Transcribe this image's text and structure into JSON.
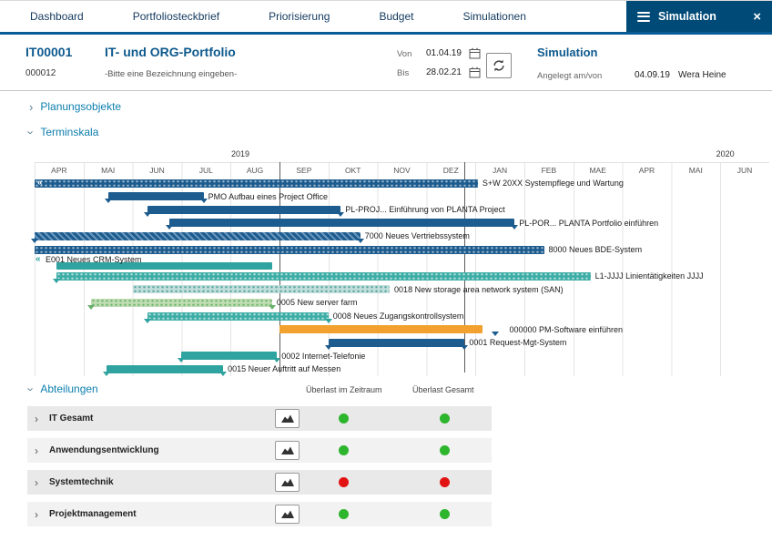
{
  "colors": {
    "accent_blue": "#0e5a8e",
    "tab_active_bg": "#004a78",
    "section_blue": "#0e7fae",
    "green": "#2db52d",
    "red": "#e31212",
    "dark_bar": "#1d5c8f",
    "teal_bar": "#2fa3a0",
    "orange_bar": "#f2a12e"
  },
  "tabs": {
    "items": [
      {
        "label": "Dashboard"
      },
      {
        "label": "Portfoliosteckbrief"
      },
      {
        "label": "Priorisierung"
      },
      {
        "label": "Budget"
      },
      {
        "label": "Simulationen"
      },
      {
        "label": "Simulation",
        "active": true
      }
    ]
  },
  "header": {
    "id": "IT00001",
    "id2": "000012",
    "title": "IT- und ORG-Portfolio",
    "subtitle": "-Bitte eine Bezeichnung eingeben-",
    "von_label": "Von",
    "von_value": "01.04.19",
    "bis_label": "Bis",
    "bis_value": "28.02.21",
    "sim_title": "Simulation",
    "created_label": "Angelegt am/von",
    "created_date": "04.09.19",
    "created_by": "Wera Heine"
  },
  "sections": {
    "planungsobjekte": "Planungsobjekte",
    "terminskala": "Terminskala",
    "abteilungen": "Abteilungen"
  },
  "chart_data": {
    "type": "gantt",
    "title": "Terminskala",
    "time_axis": {
      "years": [
        {
          "label": "2019",
          "center_month": 4.2
        },
        {
          "label": "2020",
          "center_month": 14.1
        }
      ],
      "months": [
        "APR",
        "MAI",
        "JUN",
        "JUL",
        "AUG",
        "SEP",
        "OKT",
        "NOV",
        "DEZ",
        "JAN",
        "FEB",
        "MAE",
        "APR",
        "MAI",
        "JUN"
      ],
      "start": "APR 2019"
    },
    "reference_lines_months": [
      5.0,
      8.78
    ],
    "tasks": [
      {
        "label": "S+W 20XX Systempflege und Wartung",
        "start": 0,
        "end": 9.05,
        "style": "dark-dot",
        "cont_left": true
      },
      {
        "label": "PMO Aufbau eines Project Office",
        "start": 1.5,
        "end": 3.45,
        "style": "dark",
        "tri": "both"
      },
      {
        "label": "PL-PROJ... Einführung von PLANTA Project",
        "start": 2.3,
        "end": 6.25,
        "style": "dark",
        "tri": "both"
      },
      {
        "label": "PL-POR... PLANTA Portfolio einführen",
        "start": 2.75,
        "end": 9.8,
        "style": "dark",
        "tri": "both"
      },
      {
        "label": "7000 Neues Vertriebssystem",
        "start": 0,
        "end": 6.65,
        "style": "dark-hatch",
        "tri": "both"
      },
      {
        "label": "8000 Neues BDE-System",
        "start": 0,
        "end": 10.4,
        "style": "dark-dot"
      },
      {
        "label": "E001 Neues CRM-System",
        "start": 0.45,
        "end": 4.85,
        "style": "teal",
        "cont_left": true,
        "label_above": true
      },
      {
        "label": "L1-JJJJ Linientätigkeiten JJJJ",
        "start": 0.45,
        "end": 11.35,
        "style": "teal-dot",
        "tri": "start"
      },
      {
        "label": "0018 New storage area network system (SAN)",
        "start": 2.0,
        "end": 7.25,
        "style": "lteal-dot"
      },
      {
        "label": "0005 New server farm",
        "start": 1.15,
        "end": 4.85,
        "style": "lgreen-dot",
        "tri": "both"
      },
      {
        "label": "0008 Neues Zugangskontrollsystem",
        "start": 2.3,
        "end": 6.0,
        "style": "teal-dot",
        "tri": "both"
      },
      {
        "label": "000000 PM-Software einführen",
        "start": 5.0,
        "end": 9.15,
        "style": "orange",
        "milestone": 9.4,
        "label_at": 9.6
      },
      {
        "label": "0001 Request-Mgt-System",
        "start": 6.0,
        "end": 8.78,
        "style": "dark",
        "tri": "both"
      },
      {
        "label": "0002 Internet-Telefonie",
        "start": 3.0,
        "end": 4.95,
        "style": "teal",
        "tri": "both"
      },
      {
        "label": "0015 Neuer Auftritt auf Messen",
        "start": 1.47,
        "end": 3.85,
        "style": "teal",
        "tri": "both"
      }
    ]
  },
  "departments": {
    "col1": "Überlast im Zeitraum",
    "col2": "Überlast Gesamt",
    "rows": [
      {
        "label": "IT Gesamt",
        "zeitraum": "green",
        "gesamt": "green"
      },
      {
        "label": "Anwendungsentwicklung",
        "zeitraum": "green",
        "gesamt": "green"
      },
      {
        "label": "Systemtechnik",
        "zeitraum": "red",
        "gesamt": "red"
      },
      {
        "label": "Projektmanagement",
        "zeitraum": "green",
        "gesamt": "green"
      }
    ]
  }
}
